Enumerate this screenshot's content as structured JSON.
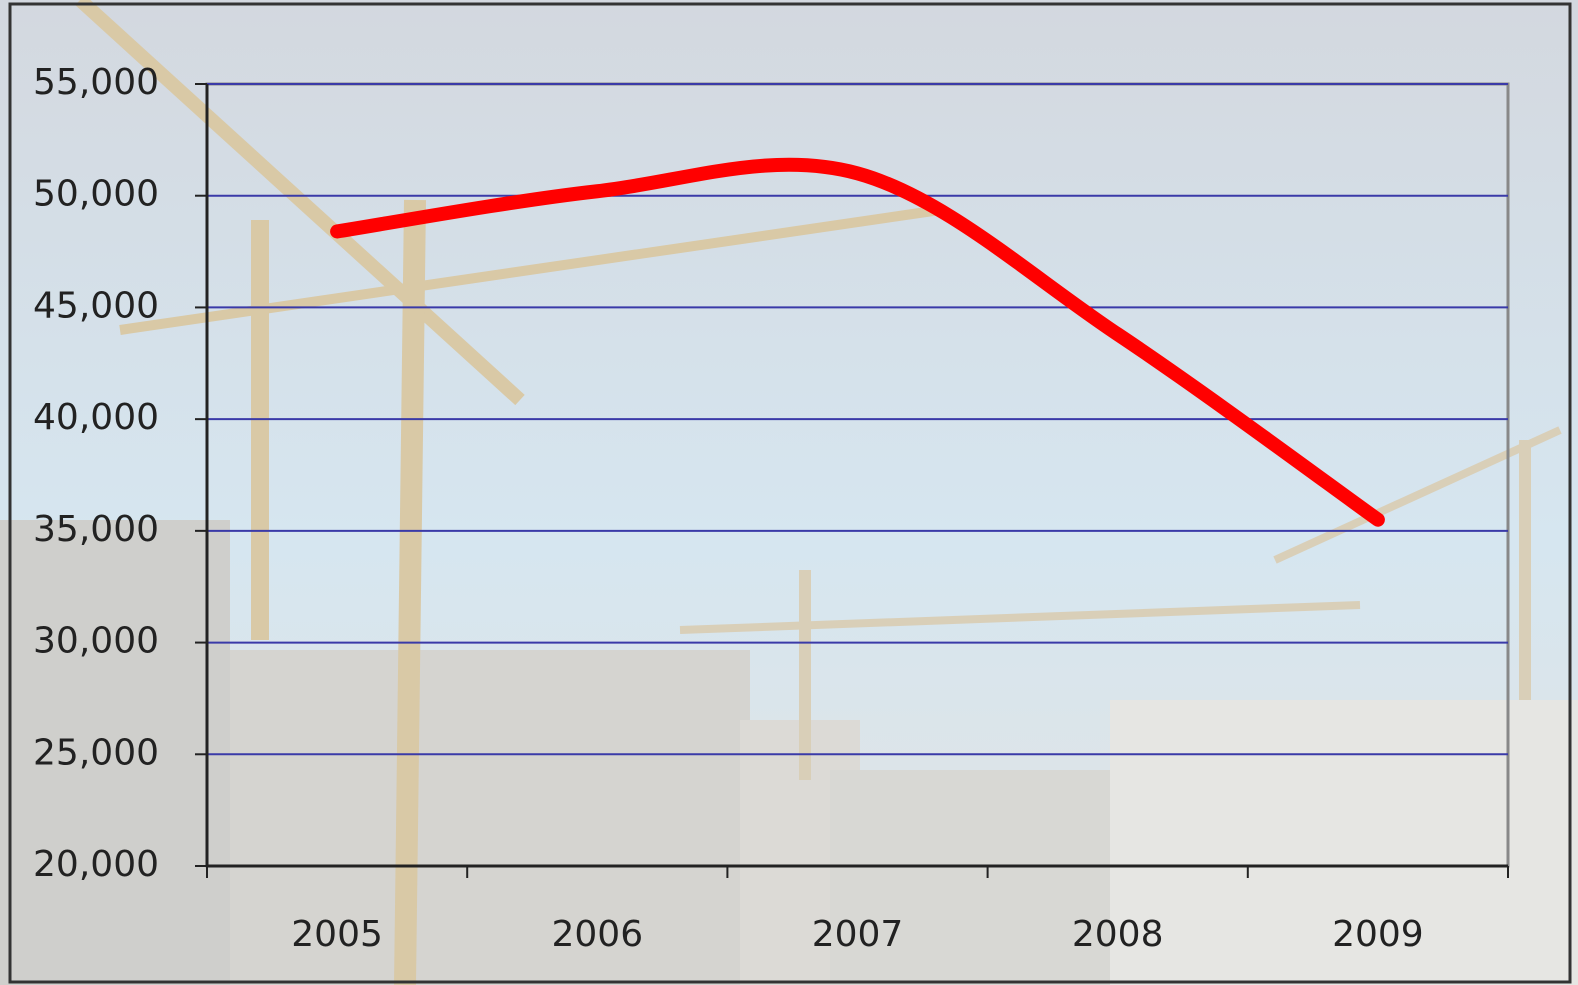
{
  "chart_data": {
    "type": "line",
    "categories": [
      "2005",
      "2006",
      "2007",
      "2008",
      "2009"
    ],
    "values": [
      48400,
      50200,
      51000,
      43800,
      35500
    ],
    "color": "#ff0000",
    "ylim": [
      20000,
      55000
    ],
    "yticks": [
      {
        "value": 20000,
        "label": "20,000"
      },
      {
        "value": 25000,
        "label": "25,000"
      },
      {
        "value": 30000,
        "label": "30,000"
      },
      {
        "value": 35000,
        "label": "35,000"
      },
      {
        "value": 40000,
        "label": "40,000"
      },
      {
        "value": 45000,
        "label": "45,000"
      },
      {
        "value": 50000,
        "label": "50,000"
      },
      {
        "value": 55000,
        "label": "55,000"
      }
    ],
    "grid": true,
    "smooth": true
  }
}
